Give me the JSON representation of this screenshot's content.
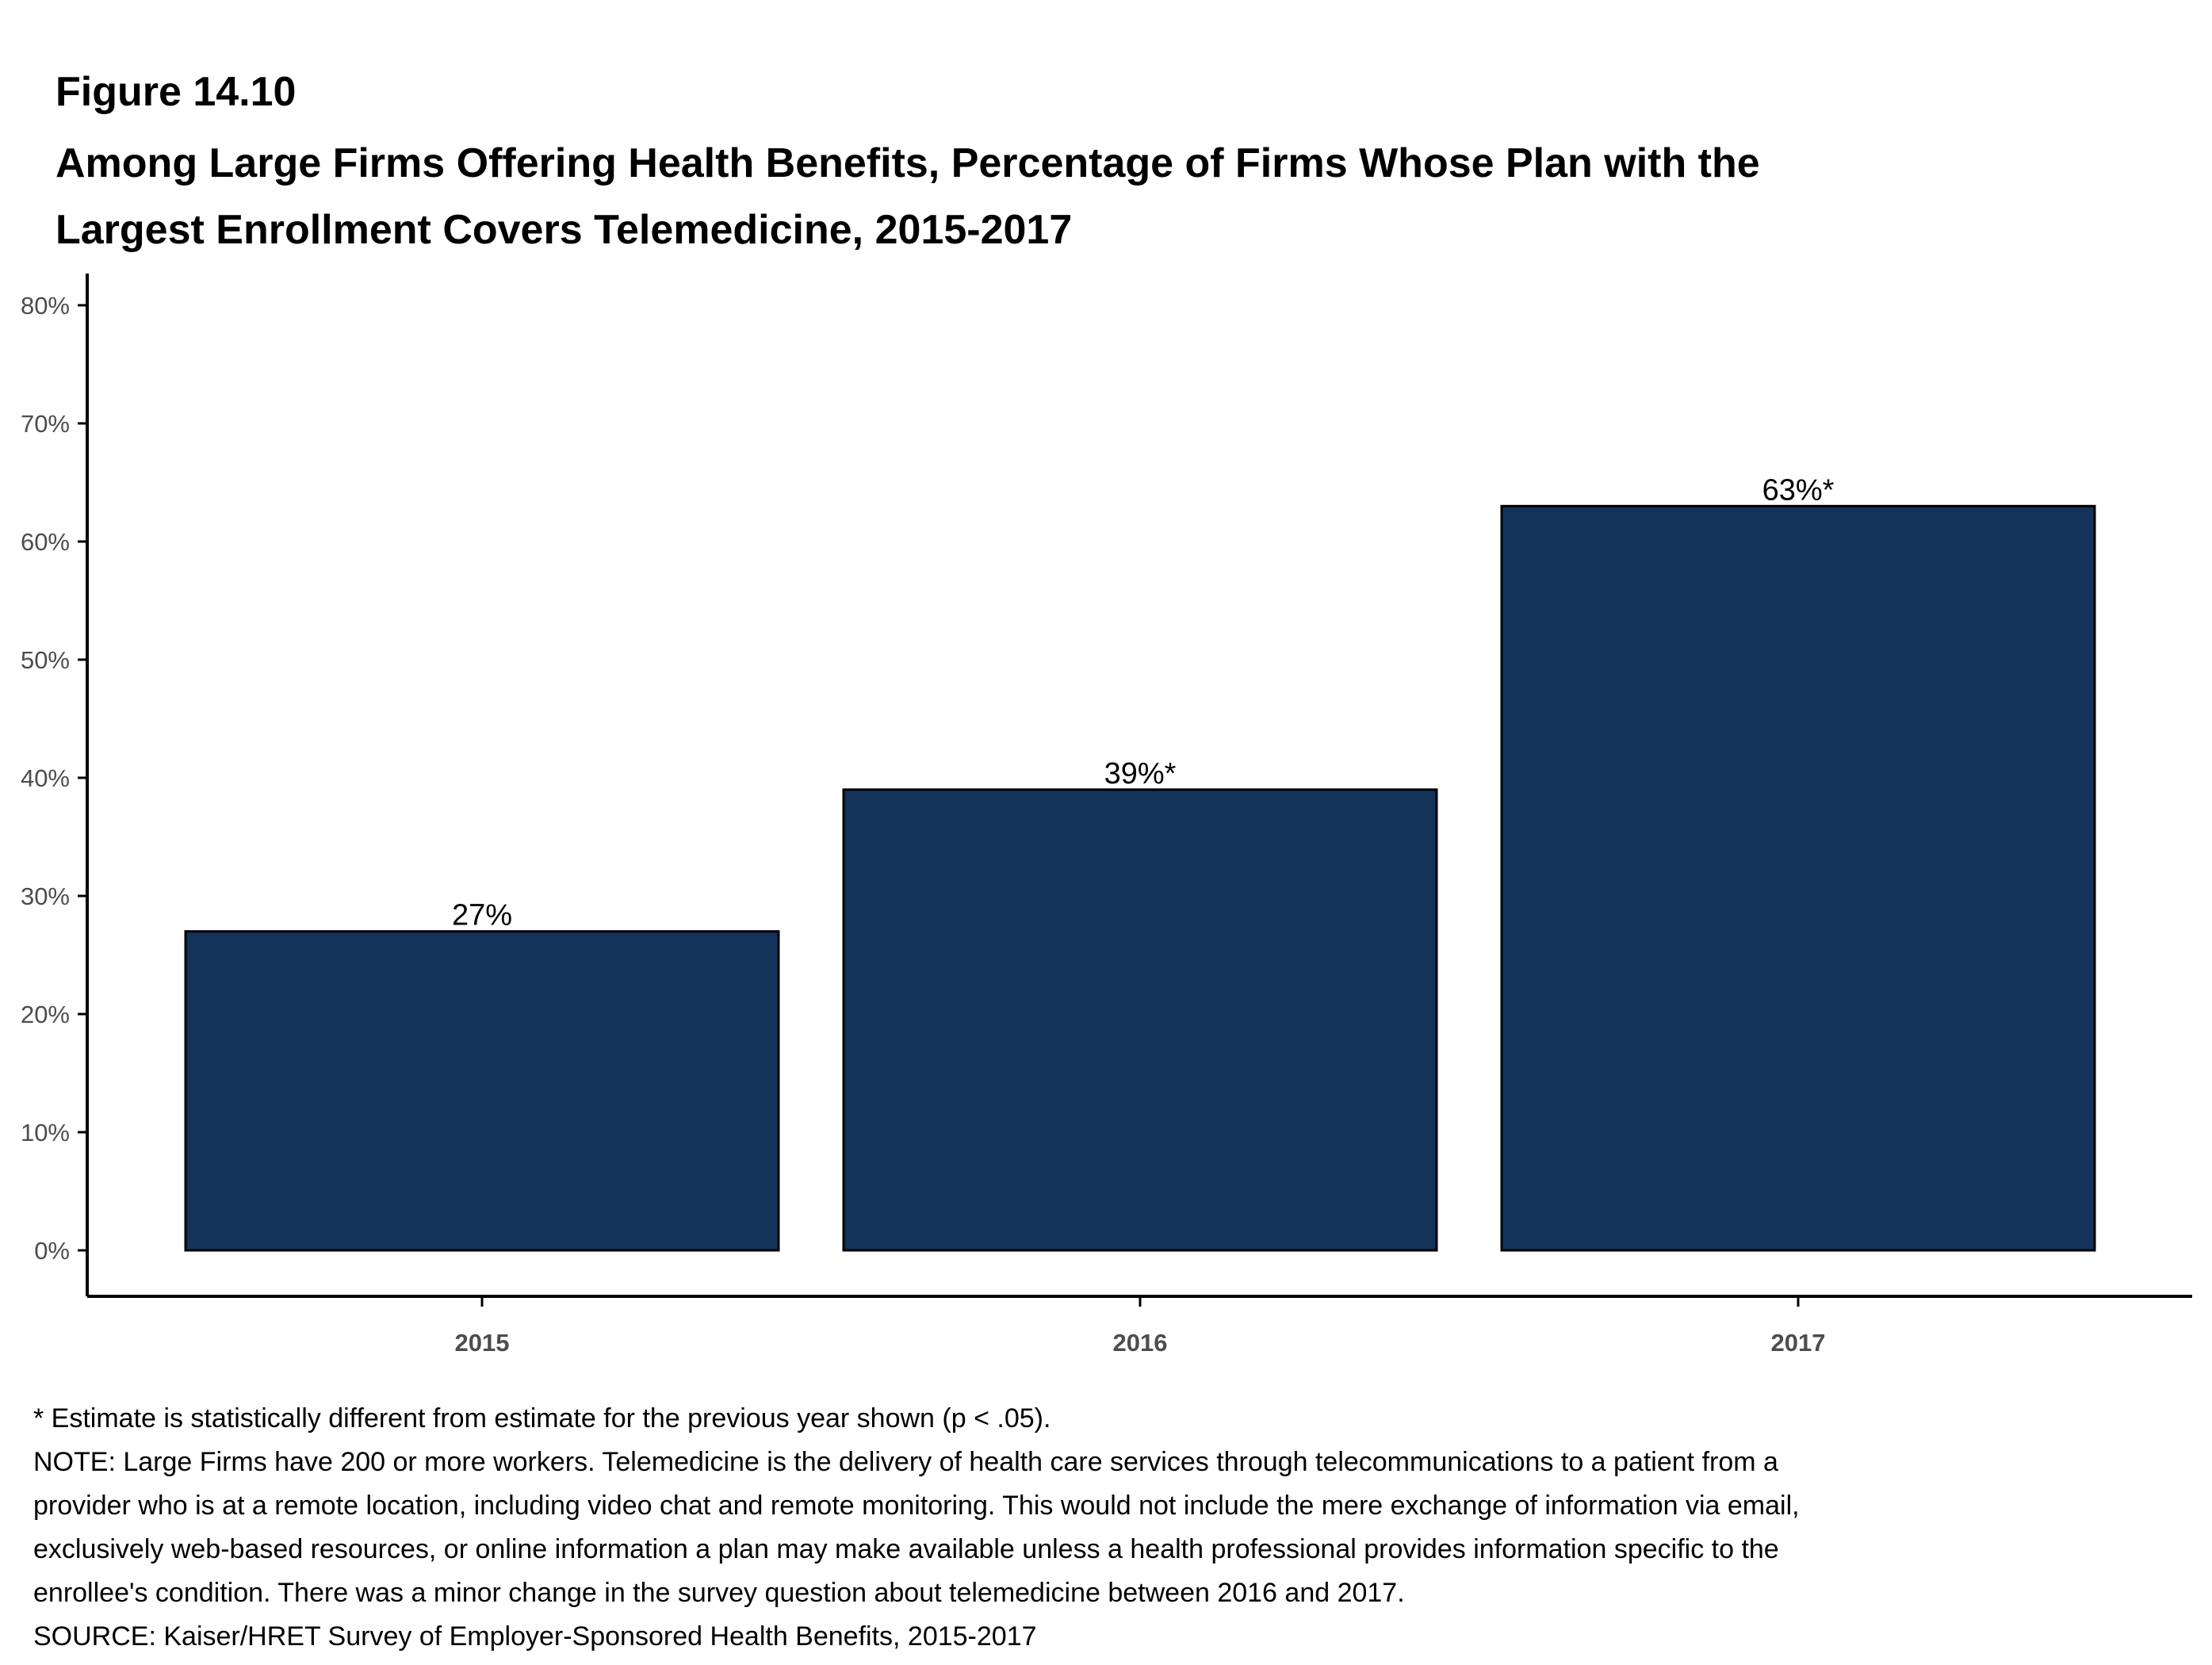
{
  "figure_label": "Figure 14.10",
  "title_line1": "Among Large Firms Offering Health Benefits, Percentage of Firms Whose Plan with the",
  "title_line2": "Largest Enrollment Covers Telemedicine, 2015-2017",
  "colors": {
    "bar": "#13335a",
    "bar_stroke": "#000000",
    "axis": "#000000",
    "tick_text": "#4d4d4d"
  },
  "chart_data": {
    "type": "bar",
    "categories": [
      "2015",
      "2016",
      "2017"
    ],
    "values": [
      27,
      39,
      63
    ],
    "data_labels": [
      "27%",
      "39%*",
      "63%*"
    ],
    "yticks": [
      0,
      10,
      20,
      30,
      40,
      50,
      60,
      70,
      80
    ],
    "ytick_labels": [
      "0%",
      "10%",
      "20%",
      "30%",
      "40%",
      "50%",
      "60%",
      "70%",
      "80%"
    ],
    "ylim": [
      0,
      80
    ],
    "grid": false,
    "xlabel": "",
    "ylabel": ""
  },
  "notes": [
    "* Estimate is statistically different from estimate for the previous year shown (p < .05).",
    "NOTE: Large Firms have 200 or more workers. Telemedicine is the delivery of health care services through telecommunications to a patient from a",
    "provider who is at a remote location, including video chat and remote monitoring. This would not include the mere exchange of information via email,",
    "exclusively web-based resources, or online information a plan may make available unless a health professional provides information specific to the",
    "enrollee's condition. There was a minor change in the survey question about telemedicine between 2016 and 2017.",
    "SOURCE: Kaiser/HRET Survey of Employer-Sponsored Health Benefits, 2015-2017"
  ]
}
